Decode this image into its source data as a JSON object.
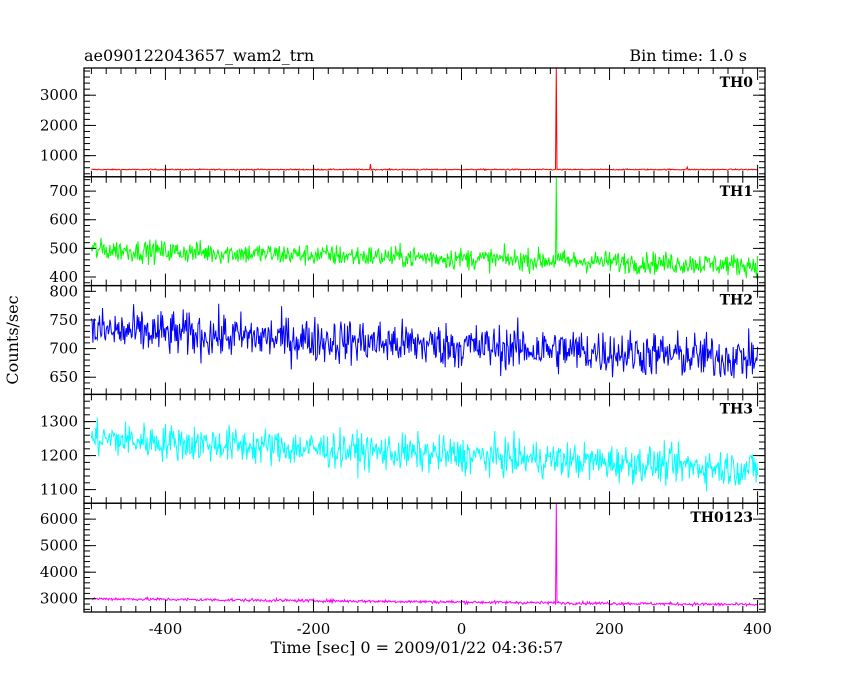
{
  "chart_data": {
    "type": "line",
    "title": "ae090122043657_wam2_trn",
    "subtitle": "Bin time: 1.0 s",
    "xlabel": "Time [sec] 0 = 2009/01/22 04:36:57",
    "ylabel": "Counts/sec",
    "xlim": [
      -510,
      410
    ],
    "x_ticks": [
      -400,
      -200,
      0,
      200,
      400
    ],
    "grid": false,
    "bin_time_s": 1.0,
    "panels": [
      {
        "name": "TH0",
        "color": "#ff0000",
        "ylim": [
          300,
          3900
        ],
        "y_ticks": [
          1000,
          2000,
          3000
        ],
        "baseline": 540,
        "trend": 0,
        "noise": 14,
        "spikes": [
          {
            "x": -123,
            "y": 720
          },
          {
            "x": 128,
            "y": 3900
          },
          {
            "x": 305,
            "y": 620
          }
        ]
      },
      {
        "name": "TH1",
        "color": "#00ff00",
        "ylim": [
          370,
          750
        ],
        "y_ticks": [
          400,
          500,
          600,
          700
        ],
        "baseline": 495,
        "trend": -0.06,
        "noise": 27,
        "spikes": [
          {
            "x": 128,
            "y": 750
          }
        ]
      },
      {
        "name": "TH2",
        "color": "#0000ff",
        "ylim": [
          620,
          810
        ],
        "y_ticks": [
          650,
          700,
          750,
          800
        ],
        "baseline": 732,
        "trend": -0.055,
        "noise": 28,
        "spikes": []
      },
      {
        "name": "TH3",
        "color": "#00ffff",
        "ylim": [
          1060,
          1380
        ],
        "y_ticks": [
          1100,
          1200,
          1300
        ],
        "baseline": 1250,
        "trend": -0.1,
        "noise": 38,
        "spikes": []
      },
      {
        "name": "TH0123",
        "color": "#ff00ff",
        "ylim": [
          2500,
          6600
        ],
        "y_ticks": [
          3000,
          4000,
          5000,
          6000
        ],
        "baseline": 3000,
        "trend": -0.25,
        "noise": 40,
        "spikes": [
          {
            "x": 128,
            "y": 6600
          }
        ]
      }
    ]
  }
}
